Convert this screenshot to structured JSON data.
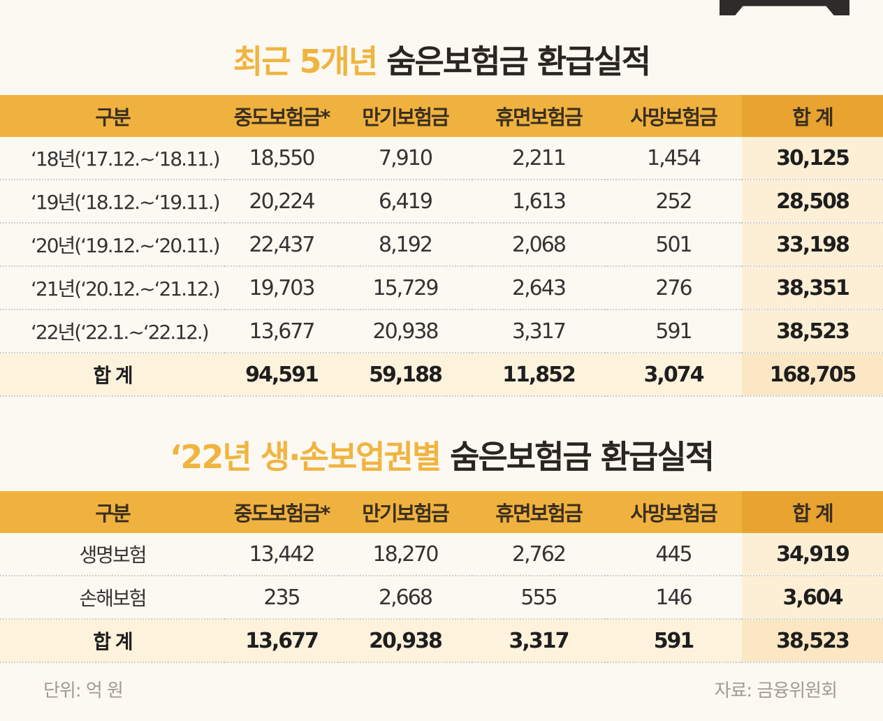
{
  "title1": {
    "highlight": "최근 5개년",
    "rest": "숨은보험금 환급실적"
  },
  "table1": {
    "headers": [
      "구분",
      "중도보험금*",
      "만기보험금",
      "휴면보험금",
      "사망보험금",
      "합 계"
    ],
    "rows": [
      [
        "‘18년(‘17.12.~‘18.11.)",
        "18,550",
        "7,910",
        "2,211",
        "1,454",
        "30,125"
      ],
      [
        "‘19년(‘18.12.~‘19.11.)",
        "20,224",
        "6,419",
        "1,613",
        "252",
        "28,508"
      ],
      [
        "‘20년(‘19.12.~‘20.11.)",
        "22,437",
        "8,192",
        "2,068",
        "501",
        "33,198"
      ],
      [
        "‘21년(‘20.12.~‘21.12.)",
        "19,703",
        "15,729",
        "2,643",
        "276",
        "38,351"
      ],
      [
        "‘22년(‘22.1.~‘22.12.)",
        "13,677",
        "20,938",
        "3,317",
        "591",
        "38,523"
      ],
      [
        "합 계",
        "94,591",
        "59,188",
        "11,852",
        "3,074",
        "168,705"
      ]
    ]
  },
  "title2": {
    "highlight": "‘22년 생·손보업권별",
    "rest": "숨은보험금 환급실적"
  },
  "table2": {
    "headers": [
      "구분",
      "중도보험금*",
      "만기보험금",
      "휴면보험금",
      "사망보험금",
      "합 계"
    ],
    "rows": [
      [
        "생명보험",
        "13,442",
        "18,270",
        "2,762",
        "445",
        "34,919"
      ],
      [
        "손해보험",
        "235",
        "2,668",
        "555",
        "146",
        "3,604"
      ],
      [
        "합 계",
        "13,677",
        "20,938",
        "3,317",
        "591",
        "38,523"
      ]
    ]
  },
  "footer": {
    "unit": "단위: 억 원",
    "source": "자료: 금융위원회"
  },
  "colors": {
    "accent": "#f0b23e",
    "highlight_text": "#f0b440",
    "total_bg": "#fdefd6"
  }
}
